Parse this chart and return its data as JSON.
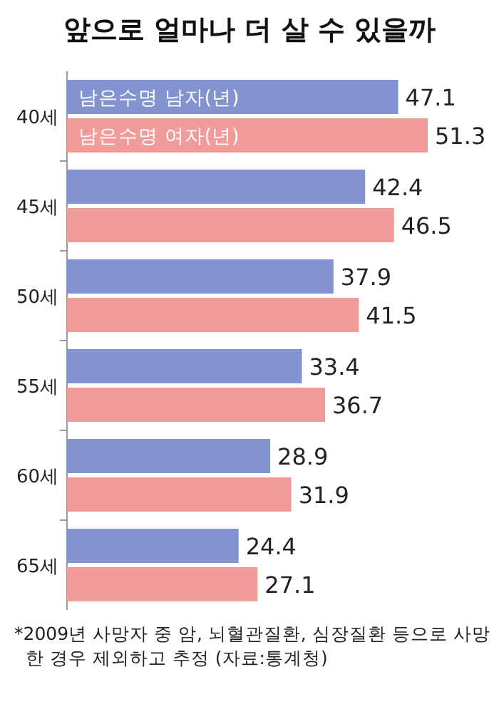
{
  "chart_data": {
    "type": "bar",
    "orientation": "horizontal",
    "title": "앞으로 얼마나 더 살 수 있을까",
    "categories": [
      "40세",
      "45세",
      "50세",
      "55세",
      "60세",
      "65세"
    ],
    "series": [
      {
        "name": "남은수명 남자(년)",
        "color": "#8393cf",
        "values": [
          47.1,
          42.4,
          37.9,
          33.4,
          28.9,
          24.4
        ]
      },
      {
        "name": "남은수명 여자(년)",
        "color": "#f29b9b",
        "values": [
          51.3,
          46.5,
          41.5,
          36.7,
          31.9,
          27.1
        ]
      }
    ],
    "data_labels": true,
    "annotations": [
      "*2009년 사망자 중 암, 뇌혈관질환, 심장질환 등으로 사망한 경우 제외하고 추정 (자료:통계청)"
    ]
  }
}
